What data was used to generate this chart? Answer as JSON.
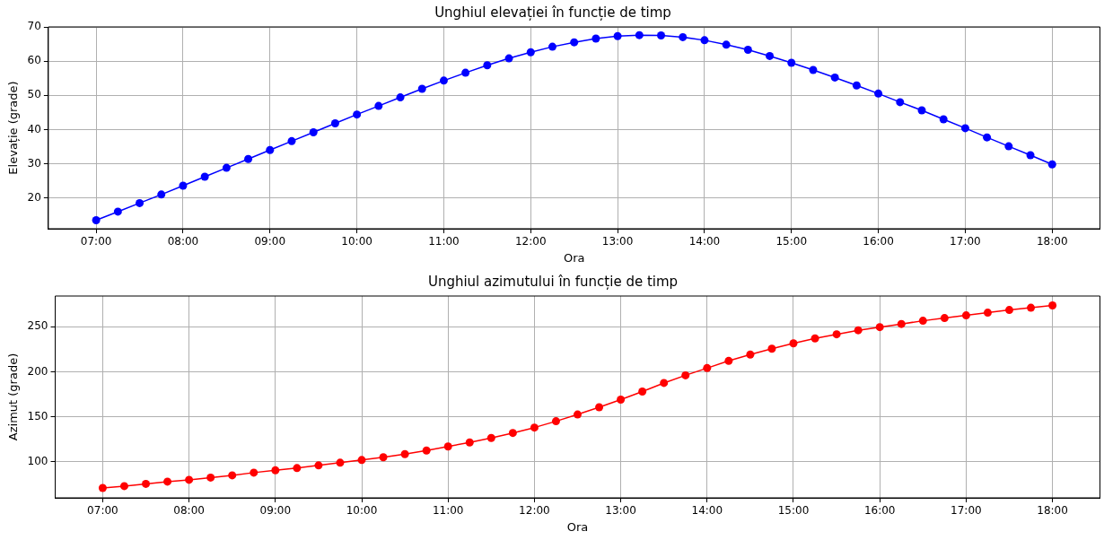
{
  "chart_data": [
    {
      "type": "line",
      "title": "Unghiul elevației în funcție de timp",
      "xlabel": "Ora",
      "ylabel": "Elevație (grade)",
      "x": [
        7,
        7.25,
        7.5,
        7.75,
        8,
        8.25,
        8.5,
        8.75,
        9,
        9.25,
        9.5,
        9.75,
        10,
        10.25,
        10.5,
        10.75,
        11,
        11.25,
        11.5,
        11.75,
        12,
        12.25,
        12.5,
        12.75,
        13,
        13.25,
        13.5,
        13.75,
        14,
        14.25,
        14.5,
        14.75,
        15,
        15.25,
        15.5,
        15.75,
        16,
        16.25,
        16.5,
        16.75,
        17,
        17.25,
        17.5,
        17.75,
        18
      ],
      "series": [
        {
          "color": "#0000ff",
          "values": [
            13.5,
            16,
            18.5,
            21,
            23.6,
            26.2,
            28.8,
            31.4,
            34,
            36.6,
            39.2,
            41.8,
            44.4,
            46.9,
            49.4,
            51.9,
            54.3,
            56.6,
            58.8,
            60.8,
            62.6,
            64.2,
            65.5,
            66.6,
            67.3,
            67.6,
            67.5,
            67,
            66.1,
            64.8,
            63.3,
            61.5,
            59.5,
            57.4,
            55.2,
            52.9,
            50.5,
            48,
            45.6,
            43,
            40.4,
            37.7,
            35.1,
            32.5,
            29.8
          ]
        }
      ],
      "xlim": [
        6.45,
        18.55
      ],
      "xticks": [
        {
          "value": 7,
          "label": "07:00"
        },
        {
          "value": 8,
          "label": "08:00"
        },
        {
          "value": 9,
          "label": "09:00"
        },
        {
          "value": 10,
          "label": "10:00"
        },
        {
          "value": 11,
          "label": "11:00"
        },
        {
          "value": 12,
          "label": "12:00"
        },
        {
          "value": 13,
          "label": "13:00"
        },
        {
          "value": 14,
          "label": "14:00"
        },
        {
          "value": 15,
          "label": "15:00"
        },
        {
          "value": 16,
          "label": "16:00"
        },
        {
          "value": 17,
          "label": "17:00"
        },
        {
          "value": 18,
          "label": "18:00"
        }
      ],
      "ylim": [
        11,
        70
      ],
      "yticks": [
        20,
        30,
        40,
        50,
        60,
        70
      ],
      "grid": true,
      "marker": "circle",
      "line_style": "solid"
    },
    {
      "type": "line",
      "title": "Unghiul azimutului în funcție de timp",
      "xlabel": "Ora",
      "ylabel": "Azimut (grade)",
      "x": [
        7,
        7.25,
        7.5,
        7.75,
        8,
        8.25,
        8.5,
        8.75,
        9,
        9.25,
        9.5,
        9.75,
        10,
        10.25,
        10.5,
        10.75,
        11,
        11.25,
        11.5,
        11.75,
        12,
        12.25,
        12.5,
        12.75,
        13,
        13.25,
        13.5,
        13.75,
        14,
        14.25,
        14.5,
        14.75,
        15,
        15.25,
        15.5,
        15.75,
        16,
        16.25,
        16.5,
        16.75,
        17,
        17.25,
        17.5,
        17.75,
        18
      ],
      "series": [
        {
          "color": "#ff0000",
          "values": [
            71,
            73,
            75.5,
            78,
            80,
            82.5,
            85,
            88,
            90.5,
            93,
            96,
            99,
            102,
            105,
            108.5,
            112.5,
            117,
            121.5,
            126.5,
            132,
            138,
            145,
            152.5,
            160.5,
            169,
            178,
            187.5,
            196,
            204,
            212,
            219,
            225.5,
            231.5,
            237,
            241.5,
            246,
            249.5,
            253,
            256.5,
            259.5,
            262.5,
            265.5,
            268.5,
            271,
            273.5
          ]
        }
      ],
      "xlim": [
        6.45,
        18.55
      ],
      "xticks": [
        {
          "value": 7,
          "label": "07:00"
        },
        {
          "value": 8,
          "label": "08:00"
        },
        {
          "value": 9,
          "label": "09:00"
        },
        {
          "value": 10,
          "label": "10:00"
        },
        {
          "value": 11,
          "label": "11:00"
        },
        {
          "value": 12,
          "label": "12:00"
        },
        {
          "value": 13,
          "label": "13:00"
        },
        {
          "value": 14,
          "label": "14:00"
        },
        {
          "value": 15,
          "label": "15:00"
        },
        {
          "value": 16,
          "label": "16:00"
        },
        {
          "value": 17,
          "label": "17:00"
        },
        {
          "value": 18,
          "label": "18:00"
        }
      ],
      "ylim": [
        60,
        284
      ],
      "yticks": [
        100,
        150,
        200,
        250
      ],
      "grid": true,
      "marker": "circle",
      "line_style": "solid"
    }
  ]
}
